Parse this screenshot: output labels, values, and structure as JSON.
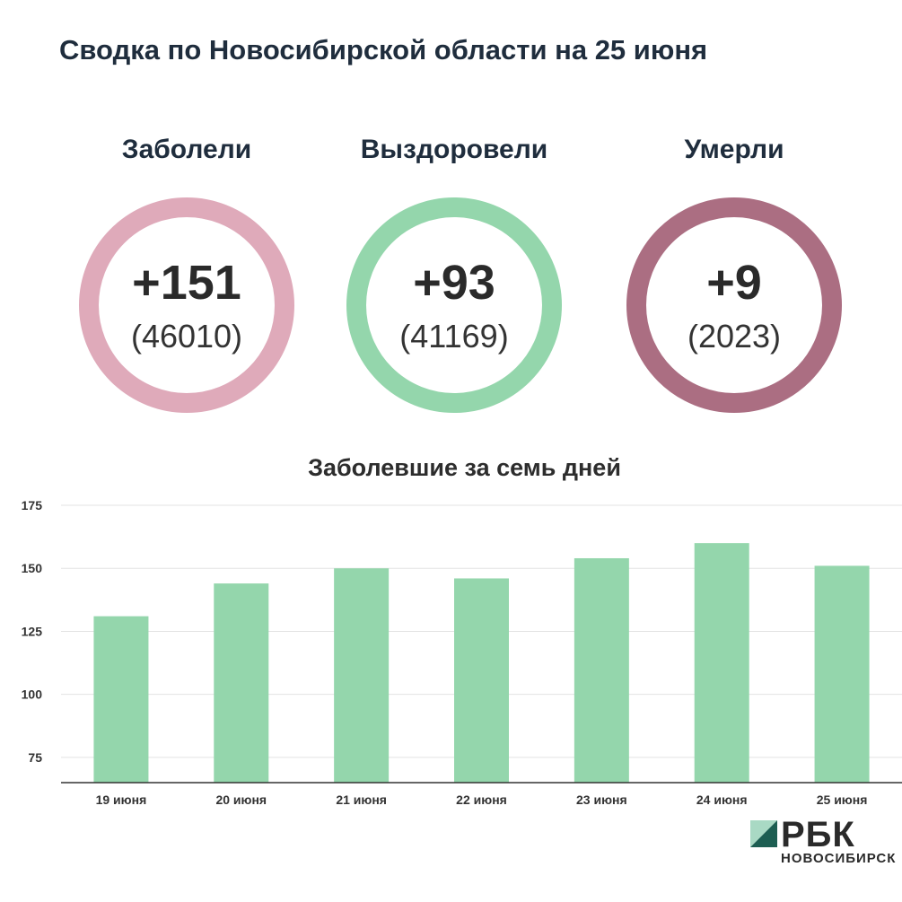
{
  "header": {
    "title": "Сводка по Новосибирской области на 25 июня"
  },
  "stats": [
    {
      "label": "Заболели",
      "delta": "+151",
      "total": "(46010)",
      "color": "#dfaaba"
    },
    {
      "label": "Выздоровели",
      "delta": "+93",
      "total": "(41169)",
      "color": "#94d6ac"
    },
    {
      "label": "Умерли",
      "delta": "+9",
      "total": "(2023)",
      "color": "#ab6e82"
    }
  ],
  "chart_data": {
    "type": "bar",
    "title": "Заболевшие за семь дней",
    "xlabel": "",
    "ylabel": "",
    "categories": [
      "19 июня",
      "20 июня",
      "21 июня",
      "22 июня",
      "23 июня",
      "24 июня",
      "25 июня"
    ],
    "values": [
      131,
      144,
      150,
      146,
      154,
      160,
      151
    ],
    "ylim": [
      65,
      175
    ],
    "yticks": [
      75,
      100,
      125,
      150,
      175
    ],
    "grid": true,
    "bar_color": "#94d6ac"
  },
  "brand": {
    "name": "РБК",
    "city": "НОВОСИБИРСК",
    "mark_color": "#1d5e52"
  }
}
